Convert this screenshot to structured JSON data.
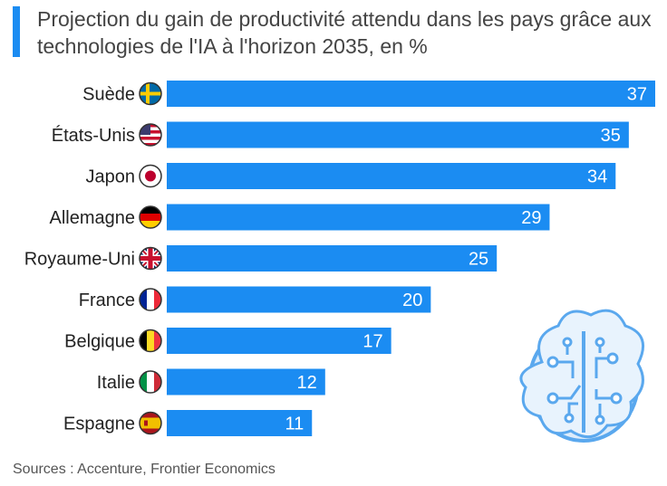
{
  "title": "Projection du gain de productivité attendu dans les pays grâce aux technologies de l'IA à l'horizon 2035, en %",
  "source": "Sources : Accenture, Frontier Economics",
  "colors": {
    "bar": "#1b8cf2",
    "label": "#222222",
    "value": "#ffffff",
    "accent": "#1b8cf2",
    "brain": "#5aa8ee"
  },
  "chart_data": {
    "type": "bar",
    "orientation": "horizontal",
    "title": "Projection du gain de productivité attendu dans les pays grâce aux technologies de l'IA à l'horizon 2035, en %",
    "categories": [
      "Suède",
      "États-Unis",
      "Japon",
      "Allemagne",
      "Royaume-Uni",
      "France",
      "Belgique",
      "Italie",
      "Espagne"
    ],
    "values": [
      37,
      35,
      34,
      29,
      25,
      20,
      17,
      12,
      11
    ],
    "flags": [
      "sweden-flag-icon",
      "usa-flag-icon",
      "japan-flag-icon",
      "germany-flag-icon",
      "uk-flag-icon",
      "france-flag-icon",
      "belgium-flag-icon",
      "italy-flag-icon",
      "spain-flag-icon"
    ],
    "xlim": [
      0,
      37
    ],
    "xlabel": "",
    "ylabel": "",
    "unit": "%"
  }
}
